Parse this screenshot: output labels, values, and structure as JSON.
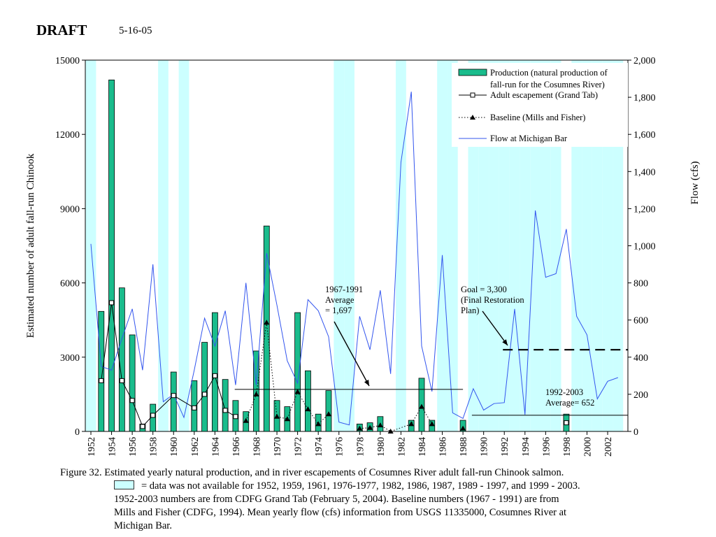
{
  "header": {
    "title": "DRAFT",
    "date": "5-16-05"
  },
  "colors": {
    "production": "#1abc8c",
    "flow": "#3355ee",
    "nodata": "#ccffff"
  },
  "chart_data": {
    "type": "bar+line",
    "left_axis": {
      "label": "Estimated number of adult fall-run Chinook",
      "range": [
        0,
        15000
      ],
      "ticks": [
        "0",
        "3000",
        "6000",
        "9000",
        "12000",
        "15000"
      ]
    },
    "right_axis": {
      "label": "Flow (cfs)",
      "range": [
        0,
        2000
      ],
      "ticks": [
        "0",
        "200",
        "400",
        "600",
        "800",
        "1,000",
        "1,200",
        "1,400",
        "1,600",
        "1,800",
        "2,000"
      ]
    },
    "x_axis": {
      "range": [
        1952,
        2003
      ],
      "ticks": [
        "1952",
        "1954",
        "1956",
        "1958",
        "1960",
        "1962",
        "1964",
        "1966",
        "1968",
        "1970",
        "1972",
        "1974",
        "1976",
        "1978",
        "1980",
        "1982",
        "1984",
        "1986",
        "1988",
        "1990",
        "1992",
        "1994",
        "1996",
        "1998",
        "2000",
        "2002"
      ]
    },
    "nodata_years": [
      1952,
      1959,
      1961,
      1976,
      1977,
      1982,
      1986,
      1987,
      1989,
      1990,
      1991,
      1992,
      1993,
      1994,
      1995,
      1996,
      1997,
      1999,
      2000,
      2001,
      2002,
      2003
    ],
    "legend": {
      "production": "Production (natural production of fall-run for the Cosumnes River)",
      "escapement": "Adult escapement (Grand Tab)",
      "baseline": "Baseline (Mills and Fisher)",
      "flow": "Flow at Michigan Bar"
    },
    "series": [
      {
        "name": "Production (natural production of fall-run for the Cosumnes River)",
        "type": "bar",
        "points": [
          [
            1953,
            4850
          ],
          [
            1954,
            14200
          ],
          [
            1955,
            5800
          ],
          [
            1956,
            3900
          ],
          [
            1957,
            300
          ],
          [
            1958,
            1100
          ],
          [
            1960,
            2400
          ],
          [
            1962,
            2050
          ],
          [
            1963,
            3600
          ],
          [
            1964,
            4800
          ],
          [
            1965,
            2100
          ],
          [
            1966,
            1250
          ],
          [
            1967,
            800
          ],
          [
            1968,
            3250
          ],
          [
            1969,
            8300
          ],
          [
            1970,
            1250
          ],
          [
            1971,
            1000
          ],
          [
            1972,
            4800
          ],
          [
            1973,
            2450
          ],
          [
            1974,
            700
          ],
          [
            1975,
            1650
          ],
          [
            1978,
            300
          ],
          [
            1979,
            350
          ],
          [
            1980,
            600
          ],
          [
            1983,
            450
          ],
          [
            1984,
            2150
          ],
          [
            1985,
            450
          ],
          [
            1988,
            450
          ],
          [
            1998,
            700
          ]
        ]
      },
      {
        "name": "Adult escapement (Grand Tab)",
        "type": "line",
        "points": [
          [
            1953,
            2050
          ],
          [
            1954,
            5200
          ],
          [
            1955,
            2050
          ],
          [
            1956,
            1250
          ],
          [
            1957,
            200
          ],
          [
            1958,
            650
          ],
          [
            1960,
            1450
          ],
          [
            1962,
            950
          ],
          [
            1963,
            1500
          ],
          [
            1964,
            2250
          ],
          [
            1965,
            850
          ],
          [
            1966,
            600
          ],
          [
            1998,
            350
          ]
        ]
      },
      {
        "name": "Baseline (Mills and Fisher)",
        "type": "dotted",
        "points": [
          [
            1967,
            430
          ],
          [
            1968,
            1500
          ],
          [
            1969,
            4400
          ],
          [
            1970,
            600
          ],
          [
            1971,
            500
          ],
          [
            1972,
            1600
          ],
          [
            1973,
            900
          ],
          [
            1974,
            300
          ],
          [
            1975,
            700
          ],
          [
            1978,
            120
          ],
          [
            1979,
            150
          ],
          [
            1980,
            250
          ],
          [
            1981,
            0
          ],
          [
            1983,
            300
          ],
          [
            1984,
            1000
          ],
          [
            1985,
            300
          ],
          [
            1988,
            120
          ]
        ]
      },
      {
        "name": "Flow at Michigan Bar",
        "type": "line",
        "axis": "right",
        "points": [
          [
            1952,
            1010
          ],
          [
            1953,
            350
          ],
          [
            1954,
            330
          ],
          [
            1955,
            500
          ],
          [
            1956,
            660
          ],
          [
            1957,
            330
          ],
          [
            1958,
            900
          ],
          [
            1959,
            160
          ],
          [
            1960,
            200
          ],
          [
            1961,
            75
          ],
          [
            1962,
            330
          ],
          [
            1963,
            610
          ],
          [
            1964,
            460
          ],
          [
            1965,
            650
          ],
          [
            1966,
            250
          ],
          [
            1967,
            800
          ],
          [
            1968,
            250
          ],
          [
            1969,
            960
          ],
          [
            1970,
            680
          ],
          [
            1971,
            380
          ],
          [
            1972,
            260
          ],
          [
            1973,
            710
          ],
          [
            1974,
            650
          ],
          [
            1975,
            510
          ],
          [
            1976,
            50
          ],
          [
            1977,
            35
          ],
          [
            1978,
            620
          ],
          [
            1979,
            440
          ],
          [
            1980,
            760
          ],
          [
            1981,
            310
          ],
          [
            1982,
            1450
          ],
          [
            1983,
            1830
          ],
          [
            1984,
            460
          ],
          [
            1985,
            215
          ],
          [
            1986,
            950
          ],
          [
            1987,
            100
          ],
          [
            1988,
            70
          ],
          [
            1989,
            230
          ],
          [
            1990,
            115
          ],
          [
            1991,
            150
          ],
          [
            1992,
            155
          ],
          [
            1993,
            660
          ],
          [
            1994,
            90
          ],
          [
            1995,
            1190
          ],
          [
            1996,
            830
          ],
          [
            1997,
            850
          ],
          [
            1998,
            1090
          ],
          [
            1999,
            620
          ],
          [
            2000,
            520
          ],
          [
            2001,
            175
          ],
          [
            2002,
            270
          ],
          [
            2003,
            290
          ]
        ]
      }
    ],
    "annotations": [
      {
        "lines": [
          "1967-1991",
          "Average",
          "= 1,697"
        ],
        "value": 1697,
        "years": [
          1967,
          1988
        ]
      },
      {
        "lines": [
          "Goal = 3,300",
          "(Final Restoration",
          "Plan)"
        ],
        "value": 3300,
        "years": [
          1992,
          2003
        ]
      },
      {
        "lines": [
          "1992-2003",
          "Average= 652"
        ],
        "value": 652,
        "years": [
          1989,
          2003
        ]
      }
    ]
  },
  "caption": {
    "line1": "Figure 32.  Estimated yearly natural production, and in river escapements of Cosumnes River adult fall-run Chinook salmon.",
    "line2": "= data was not available for 1952, 1959, 1961, 1976-1977, 1982, 1986, 1987, 1989 - 1997, and 1999 - 2003.",
    "line3": "1952-2003 numbers are from CDFG Grand Tab (February 5, 2004).  Baseline numbers (1967 - 1991) are from",
    "line4": "Mills and Fisher (CDFG, 1994).  Mean yearly flow (cfs) information from USGS 11335000, Cosumnes River at",
    "line5": "Michigan Bar."
  }
}
